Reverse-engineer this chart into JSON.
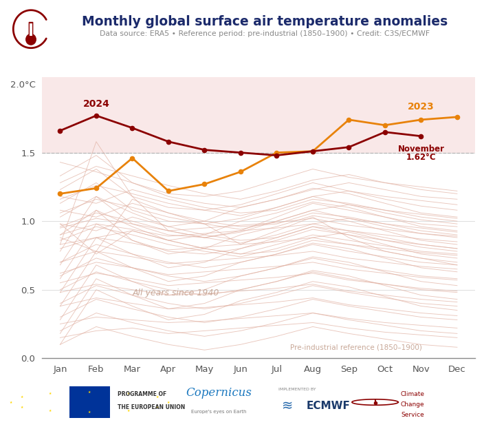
{
  "title": "Monthly global surface air temperature anomalies",
  "subtitle": "Data source: ERA5 • Reference period: pre-industrial (1850–1900) • Credit: C3S/ECMWF",
  "months": [
    "Jan",
    "Feb",
    "Mar",
    "Apr",
    "May",
    "Jun",
    "Jul",
    "Aug",
    "Sep",
    "Oct",
    "Nov",
    "Dec"
  ],
  "year2024": [
    1.66,
    1.77,
    1.68,
    1.58,
    1.52,
    1.5,
    1.48,
    1.51,
    1.54,
    1.65,
    1.62,
    null
  ],
  "year2023": [
    1.2,
    1.24,
    1.46,
    1.22,
    1.27,
    1.36,
    1.5,
    1.51,
    1.74,
    1.7,
    1.74,
    1.76
  ],
  "color_2024": "#8B0000",
  "color_2023": "#E8820A",
  "background_shaded": "#F9E8E8",
  "ylim": [
    0.0,
    2.0
  ],
  "yticks": [
    0.0,
    0.5,
    1.0,
    1.5,
    2.0
  ],
  "bg_color": "#FFFFFF",
  "all_years_label": "All years since 1940",
  "preindustrial_label": "Pre-industrial reference (1850–1900)",
  "title_color": "#1B2A6B",
  "subtitle_color": "#888888",
  "hist_line_color": "#E0AFA0",
  "grid_color": "#CCCCCC",
  "historical_years_data": [
    [
      0.15,
      0.2,
      0.22,
      0.18,
      0.2,
      0.22,
      0.24,
      0.26,
      0.22,
      0.19,
      0.17,
      0.15
    ],
    [
      0.25,
      0.3,
      0.28,
      0.26,
      0.27,
      0.29,
      0.31,
      0.33,
      0.29,
      0.26,
      0.24,
      0.22
    ],
    [
      0.38,
      0.44,
      0.4,
      0.36,
      0.37,
      0.39,
      0.41,
      0.44,
      0.39,
      0.36,
      0.33,
      0.31
    ],
    [
      0.48,
      0.54,
      0.5,
      0.46,
      0.47,
      0.49,
      0.51,
      0.54,
      0.49,
      0.46,
      0.43,
      0.41
    ],
    [
      0.55,
      0.62,
      0.58,
      0.53,
      0.55,
      0.57,
      0.59,
      0.62,
      0.57,
      0.54,
      0.51,
      0.49
    ],
    [
      0.62,
      0.7,
      0.66,
      0.61,
      0.63,
      0.65,
      0.67,
      0.7,
      0.65,
      0.62,
      0.59,
      0.57
    ],
    [
      0.7,
      0.78,
      0.74,
      0.69,
      0.71,
      0.73,
      0.75,
      0.78,
      0.73,
      0.7,
      0.67,
      0.65
    ],
    [
      0.8,
      0.88,
      0.84,
      0.79,
      0.81,
      0.83,
      0.85,
      0.88,
      0.83,
      0.8,
      0.77,
      0.75
    ],
    [
      0.9,
      0.98,
      0.94,
      0.89,
      0.91,
      0.93,
      0.95,
      0.98,
      0.93,
      0.9,
      0.87,
      0.85
    ],
    [
      0.95,
      1.02,
      0.98,
      0.93,
      0.95,
      0.97,
      0.99,
      1.02,
      0.97,
      0.94,
      0.91,
      0.89
    ],
    [
      0.1,
      0.5,
      0.38,
      0.28,
      0.32,
      0.42,
      0.48,
      0.56,
      0.52,
      0.45,
      0.38,
      0.35
    ],
    [
      0.18,
      0.58,
      0.46,
      0.36,
      0.4,
      0.5,
      0.56,
      0.64,
      0.6,
      0.53,
      0.46,
      0.43
    ],
    [
      0.28,
      0.68,
      0.56,
      0.46,
      0.5,
      0.6,
      0.66,
      0.74,
      0.7,
      0.63,
      0.56,
      0.53
    ],
    [
      0.38,
      0.78,
      0.66,
      0.56,
      0.6,
      0.7,
      0.76,
      0.84,
      0.8,
      0.73,
      0.66,
      0.63
    ],
    [
      0.48,
      0.88,
      0.76,
      0.66,
      0.7,
      0.8,
      0.86,
      0.94,
      0.9,
      0.83,
      0.76,
      0.73
    ],
    [
      0.58,
      0.98,
      0.86,
      0.76,
      0.8,
      0.9,
      0.96,
      1.04,
      1.0,
      0.93,
      0.86,
      0.83
    ],
    [
      0.68,
      1.08,
      0.96,
      0.86,
      0.9,
      1.0,
      1.06,
      1.14,
      1.1,
      1.03,
      0.96,
      0.93
    ],
    [
      0.78,
      1.18,
      1.06,
      0.96,
      1.0,
      1.1,
      1.16,
      1.24,
      1.2,
      1.13,
      1.06,
      1.03
    ],
    [
      0.88,
      0.78,
      1.16,
      1.06,
      0.98,
      0.83,
      0.93,
      1.03,
      0.88,
      0.78,
      0.73,
      0.68
    ],
    [
      0.83,
      0.88,
      0.93,
      0.86,
      0.8,
      0.76,
      0.78,
      0.86,
      0.83,
      0.78,
      0.73,
      0.7
    ],
    [
      0.98,
      0.93,
      1.03,
      0.96,
      0.9,
      0.86,
      0.88,
      0.96,
      0.93,
      0.88,
      0.83,
      0.8
    ],
    [
      1.08,
      1.03,
      1.13,
      1.06,
      1.0,
      0.96,
      0.98,
      1.06,
      1.03,
      0.98,
      0.93,
      0.9
    ],
    [
      1.18,
      1.13,
      1.23,
      1.16,
      1.1,
      1.06,
      1.08,
      1.16,
      1.13,
      1.08,
      1.03,
      1.0
    ],
    [
      0.83,
      1.58,
      1.18,
      0.93,
      0.88,
      0.93,
      1.03,
      1.13,
      1.08,
      1.03,
      0.98,
      0.96
    ],
    [
      0.9,
      1.08,
      0.86,
      0.78,
      0.76,
      0.8,
      0.88,
      0.96,
      0.9,
      0.86,
      0.83,
      0.8
    ],
    [
      1.03,
      1.18,
      0.98,
      0.9,
      0.88,
      0.92,
      1.0,
      1.08,
      1.02,
      0.98,
      0.95,
      0.92
    ],
    [
      1.13,
      1.28,
      1.08,
      1.0,
      0.98,
      1.02,
      1.1,
      1.18,
      1.12,
      1.08,
      1.05,
      1.02
    ],
    [
      1.23,
      1.38,
      1.18,
      1.1,
      1.08,
      1.12,
      1.2,
      1.28,
      1.22,
      1.18,
      1.15,
      1.12
    ],
    [
      1.33,
      1.48,
      1.28,
      1.2,
      1.18,
      1.22,
      1.3,
      1.38,
      1.32,
      1.28,
      1.25,
      1.22
    ],
    [
      0.98,
      0.76,
      0.93,
      0.86,
      0.8,
      0.76,
      0.83,
      0.9,
      0.86,
      0.82,
      0.78,
      0.76
    ],
    [
      0.7,
      0.83,
      0.76,
      0.7,
      0.66,
      0.7,
      0.76,
      0.83,
      0.78,
      0.74,
      0.7,
      0.68
    ],
    [
      0.6,
      0.73,
      0.66,
      0.6,
      0.56,
      0.6,
      0.66,
      0.73,
      0.68,
      0.64,
      0.6,
      0.58
    ],
    [
      0.5,
      0.63,
      0.56,
      0.5,
      0.46,
      0.5,
      0.56,
      0.63,
      0.58,
      0.54,
      0.5,
      0.48
    ],
    [
      0.4,
      0.53,
      0.46,
      0.4,
      0.36,
      0.4,
      0.46,
      0.53,
      0.48,
      0.44,
      0.4,
      0.38
    ],
    [
      0.3,
      0.43,
      0.36,
      0.3,
      0.26,
      0.3,
      0.36,
      0.43,
      0.38,
      0.34,
      0.3,
      0.28
    ],
    [
      0.2,
      0.33,
      0.26,
      0.2,
      0.16,
      0.2,
      0.26,
      0.33,
      0.28,
      0.24,
      0.2,
      0.18
    ],
    [
      0.1,
      0.23,
      0.16,
      0.1,
      0.06,
      0.1,
      0.16,
      0.23,
      0.18,
      0.14,
      0.1,
      0.08
    ],
    [
      1.43,
      1.36,
      1.28,
      1.18,
      1.13,
      1.1,
      1.16,
      1.23,
      1.28,
      1.23,
      1.18,
      1.16
    ],
    [
      1.28,
      1.4,
      1.33,
      1.26,
      1.2,
      1.16,
      1.22,
      1.3,
      1.34,
      1.28,
      1.23,
      1.2
    ],
    [
      1.16,
      1.26,
      1.2,
      1.13,
      1.08,
      1.04,
      1.1,
      1.18,
      1.22,
      1.16,
      1.11,
      1.08
    ],
    [
      1.06,
      1.16,
      1.1,
      1.03,
      0.98,
      0.94,
      1.0,
      1.08,
      1.12,
      1.06,
      1.01,
      0.98
    ],
    [
      0.96,
      1.06,
      1.0,
      0.93,
      0.88,
      0.84,
      0.9,
      0.98,
      1.02,
      0.96,
      0.91,
      0.88
    ],
    [
      0.86,
      0.96,
      0.9,
      0.83,
      0.78,
      0.74,
      0.8,
      0.88,
      0.92,
      0.86,
      0.81,
      0.78
    ]
  ]
}
